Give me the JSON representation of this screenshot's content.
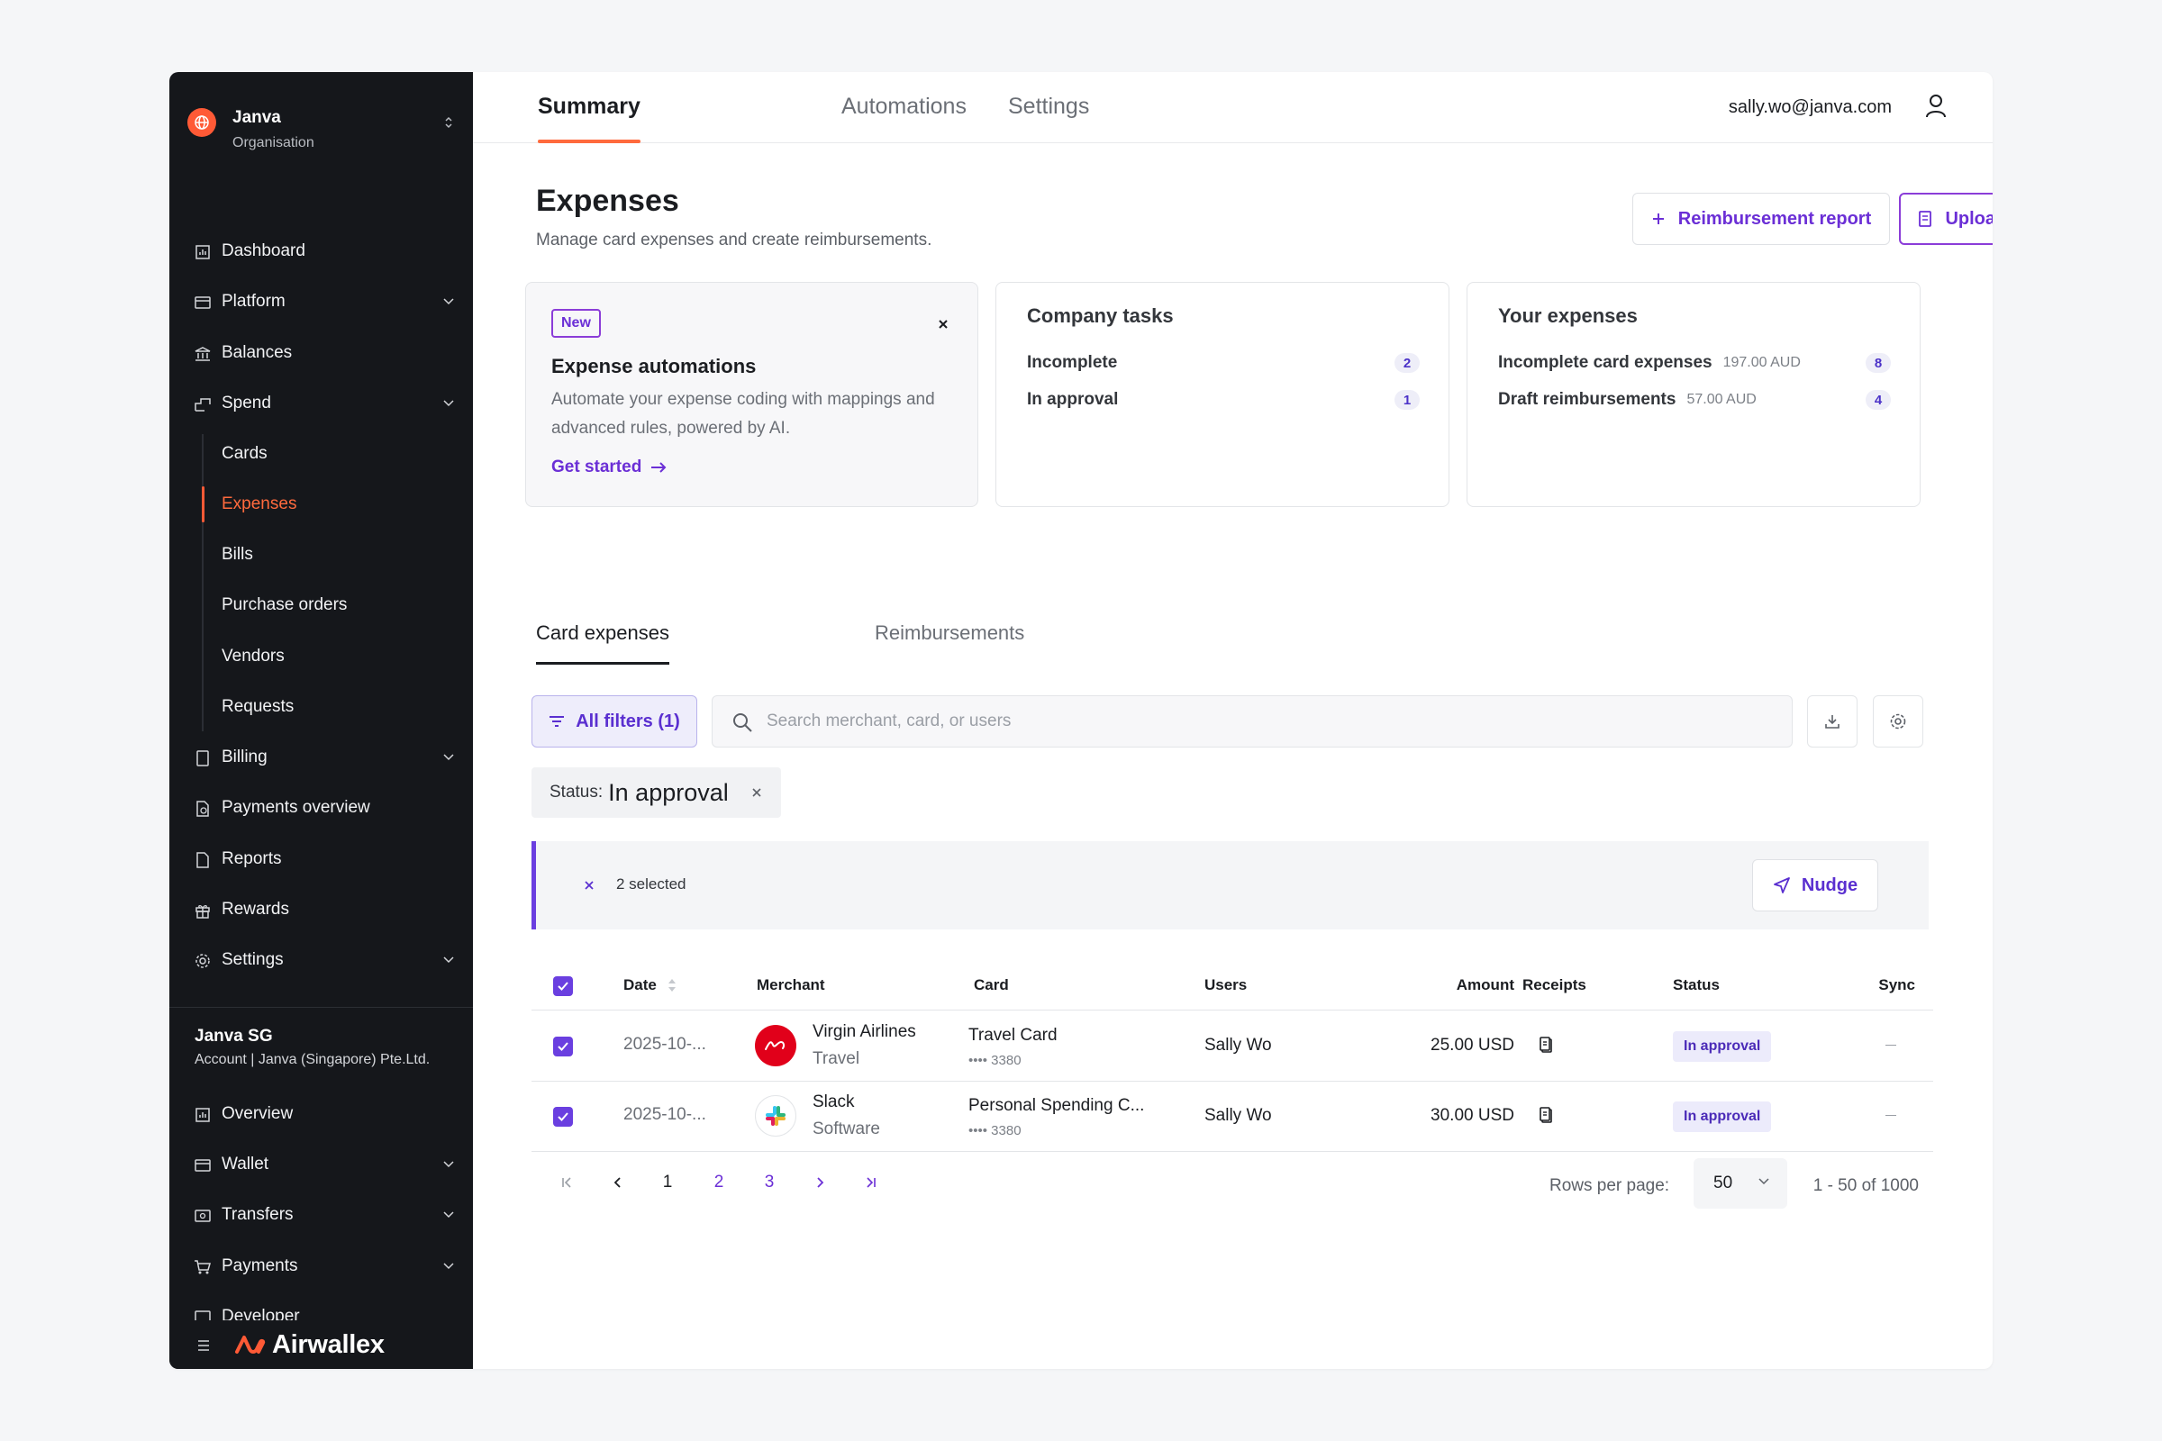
{
  "org": {
    "name": "Janva",
    "subtitle": "Organisation"
  },
  "nav": {
    "dashboard": "Dashboard",
    "platform": "Platform",
    "balances": "Balances",
    "spend": "Spend",
    "spend_items": [
      "Cards",
      "Expenses",
      "Bills",
      "Purchase orders",
      "Vendors",
      "Requests"
    ],
    "billing": "Billing",
    "payments_overview": "Payments overview",
    "reports": "Reports",
    "rewards": "Rewards",
    "settings": "Settings"
  },
  "account": {
    "name": "Janva SG",
    "subtitle": "Account | Janva (Singapore) Pte.Ltd.",
    "items": {
      "overview": "Overview",
      "wallet": "Wallet",
      "transfers": "Transfers",
      "payments": "Payments",
      "developer": "Developer"
    }
  },
  "brand": {
    "name": "Airwallex",
    "color": "#ff5a36"
  },
  "topbar": {
    "tabs": [
      "Summary",
      "Automations",
      "Settings"
    ],
    "active_tab": "Summary",
    "user_email": "sally.wo@janva.com"
  },
  "page": {
    "title": "Expenses",
    "subtitle": "Manage card expenses and create reimbursements.",
    "reimbursement_button": "Reimbursement report",
    "upload_button": "Upload receipts"
  },
  "promo": {
    "badge": "New",
    "title": "Expense automations",
    "text": "Automate your expense coding with mappings and advanced rules, powered by AI.",
    "link": "Get started"
  },
  "company_tasks": {
    "title": "Company tasks",
    "rows": [
      {
        "label": "Incomplete",
        "count": "2"
      },
      {
        "label": "In approval",
        "count": "1"
      }
    ]
  },
  "your_expenses": {
    "title": "Your expenses",
    "rows": [
      {
        "label": "Incomplete card expenses",
        "amount": "197.00 AUD",
        "count": "8"
      },
      {
        "label": "Draft reimbursements",
        "amount": "57.00 AUD",
        "count": "4"
      }
    ]
  },
  "subtabs": [
    "Card expenses",
    "Reimbursements"
  ],
  "filters": {
    "button": "All filters (1)",
    "search_placeholder": "Search merchant, card, or users",
    "search_value": "",
    "chip_key": "Status:",
    "chip_value": "In approval"
  },
  "selection": {
    "text": "2 selected",
    "nudge": "Nudge"
  },
  "table": {
    "columns": [
      "Date",
      "Merchant",
      "Card",
      "Users",
      "Amount",
      "Receipts",
      "Status",
      "Sync"
    ],
    "rows": [
      {
        "date": "2025-10-...",
        "merchant": "Virgin Airlines",
        "category": "Travel",
        "card": "Travel Card",
        "card_number": "•••• 3380",
        "user": "Sally Wo",
        "amount": "25.00 USD",
        "status": "In approval",
        "logo_icon": "virgin-logo"
      },
      {
        "date": "2025-10-...",
        "merchant": "Slack",
        "category": "Software",
        "card": "Personal Spending C...",
        "card_number": "•••• 3380",
        "user": "Sally Wo",
        "amount": "30.00 USD",
        "status": "In approval",
        "logo_icon": "slack-logo"
      }
    ]
  },
  "pagination": {
    "pages": [
      "1",
      "2",
      "3"
    ],
    "current": "1",
    "rows_per_page_label": "Rows per page:",
    "rows_per_page": "50",
    "range": "1 - 50 of 1000"
  },
  "colors": {
    "accent": "#6b2fd6",
    "brand": "#ff5a36",
    "sidebar": "#15171b"
  }
}
